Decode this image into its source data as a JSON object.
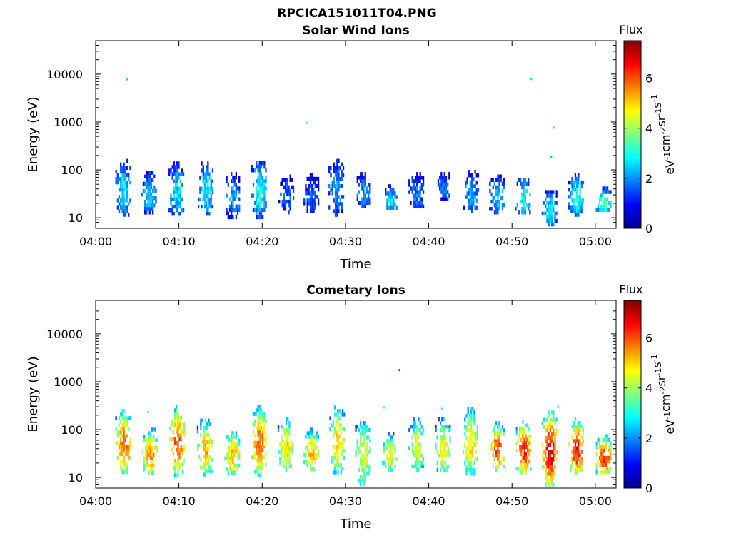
{
  "figure": {
    "title": "RPCICA151011T04.PNG"
  },
  "chart_data": [
    {
      "type": "heatmap",
      "title": "Solar Wind Ions",
      "xlabel": "Time",
      "ylabel": "Energy (eV)",
      "x_ticks": [
        "04:00",
        "04:10",
        "04:20",
        "04:30",
        "04:40",
        "04:50",
        "05:00"
      ],
      "x_tick_minutes": [
        0,
        10,
        20,
        30,
        40,
        50,
        60
      ],
      "xlim_minutes": [
        0,
        62.5
      ],
      "yscale": "log",
      "ylim": [
        6,
        50000
      ],
      "y_ticks": [
        "10",
        "100",
        "1000",
        "10000"
      ],
      "y_tick_values": [
        10,
        100,
        1000,
        10000
      ],
      "colorbar": {
        "title": "Flux",
        "label": "eV-1cm-2sr-1s-1",
        "range": [
          0,
          7.5
        ],
        "ticks": [
          "0",
          "2",
          "4",
          "6"
        ],
        "tick_values": [
          0,
          2,
          4,
          6
        ],
        "colormap": "jet"
      },
      "bursts": [
        {
          "t": 3.3,
          "e_min": 12,
          "e_max": 170,
          "flux": 2.6
        },
        {
          "t": 6.4,
          "e_min": 14,
          "e_max": 95,
          "flux": 2.4
        },
        {
          "t": 9.7,
          "e_min": 12,
          "e_max": 150,
          "flux": 2.6
        },
        {
          "t": 13.2,
          "e_min": 12,
          "e_max": 150,
          "flux": 2.6
        },
        {
          "t": 16.4,
          "e_min": 11,
          "e_max": 90,
          "flux": 2.1
        },
        {
          "t": 19.6,
          "e_min": 11,
          "e_max": 180,
          "flux": 2.8
        },
        {
          "t": 22.9,
          "e_min": 14,
          "e_max": 80,
          "flux": 1.6
        },
        {
          "t": 25.9,
          "e_min": 14,
          "e_max": 85,
          "flux": 1.6
        },
        {
          "t": 28.9,
          "e_min": 12,
          "e_max": 170,
          "flux": 2.1
        },
        {
          "t": 32.1,
          "e_min": 18,
          "e_max": 90,
          "flux": 2.1
        },
        {
          "t": 35.3,
          "e_min": 16,
          "e_max": 50,
          "flux": 2.6
        },
        {
          "t": 38.5,
          "e_min": 16,
          "e_max": 90,
          "flux": 1.8
        },
        {
          "t": 41.8,
          "e_min": 26,
          "e_max": 90,
          "flux": 1.7
        },
        {
          "t": 45.1,
          "e_min": 14,
          "e_max": 100,
          "flux": 2.1
        },
        {
          "t": 48.2,
          "e_min": 14,
          "e_max": 80,
          "flux": 2.4
        },
        {
          "t": 51.3,
          "e_min": 12,
          "e_max": 80,
          "flux": 2.8
        },
        {
          "t": 54.5,
          "e_min": 7,
          "e_max": 45,
          "flux": 2.6
        },
        {
          "t": 57.7,
          "e_min": 12,
          "e_max": 85,
          "flux": 3.0
        },
        {
          "t": 61.0,
          "e_min": 14,
          "e_max": 45,
          "flux": 3.4
        }
      ],
      "isolated_points": [
        {
          "t": 3.8,
          "e": 7800,
          "flux": 2.5
        },
        {
          "t": 25.4,
          "e": 960,
          "flux": 3.2
        },
        {
          "t": 52.3,
          "e": 7900,
          "flux": 2.6
        },
        {
          "t": 55.0,
          "e": 760,
          "flux": 2.6
        },
        {
          "t": 54.7,
          "e": 185,
          "flux": 2.4
        }
      ]
    },
    {
      "type": "heatmap",
      "title": "Cometary Ions",
      "xlabel": "Time",
      "ylabel": "Energy (eV)",
      "x_ticks": [
        "04:00",
        "04:10",
        "04:20",
        "04:30",
        "04:40",
        "04:50",
        "05:00"
      ],
      "x_tick_minutes": [
        0,
        10,
        20,
        30,
        40,
        50,
        60
      ],
      "xlim_minutes": [
        0,
        62.5
      ],
      "yscale": "log",
      "ylim": [
        6,
        50000
      ],
      "y_ticks": [
        "10",
        "100",
        "1000",
        "10000"
      ],
      "y_tick_values": [
        10,
        100,
        1000,
        10000
      ],
      "colorbar": {
        "title": "Flux",
        "label": "eV-1cm-2sr-1s-1",
        "range": [
          0,
          7.5
        ],
        "ticks": [
          "0",
          "2",
          "4",
          "6"
        ],
        "tick_values": [
          0,
          2,
          4,
          6
        ],
        "colormap": "jet"
      },
      "bursts": [
        {
          "t": 3.3,
          "e_min": 12,
          "e_max": 270,
          "flux": 5.9
        },
        {
          "t": 6.5,
          "e_min": 12,
          "e_max": 110,
          "flux": 5.6
        },
        {
          "t": 9.8,
          "e_min": 12,
          "e_max": 330,
          "flux": 6.0
        },
        {
          "t": 13.1,
          "e_min": 12,
          "e_max": 170,
          "flux": 5.3
        },
        {
          "t": 16.4,
          "e_min": 12,
          "e_max": 110,
          "flux": 5.3
        },
        {
          "t": 19.6,
          "e_min": 12,
          "e_max": 330,
          "flux": 5.9
        },
        {
          "t": 22.8,
          "e_min": 14,
          "e_max": 180,
          "flux": 5.0
        },
        {
          "t": 25.9,
          "e_min": 14,
          "e_max": 110,
          "flux": 5.2
        },
        {
          "t": 29.0,
          "e_min": 12,
          "e_max": 320,
          "flux": 5.0
        },
        {
          "t": 32.1,
          "e_min": 7,
          "e_max": 180,
          "flux": 4.4
        },
        {
          "t": 35.3,
          "e_min": 14,
          "e_max": 90,
          "flux": 4.6
        },
        {
          "t": 38.5,
          "e_min": 14,
          "e_max": 180,
          "flux": 4.4
        },
        {
          "t": 41.7,
          "e_min": 12,
          "e_max": 180,
          "flux": 4.7
        },
        {
          "t": 45.0,
          "e_min": 12,
          "e_max": 300,
          "flux": 5.0
        },
        {
          "t": 48.2,
          "e_min": 14,
          "e_max": 150,
          "flux": 6.0
        },
        {
          "t": 51.4,
          "e_min": 12,
          "e_max": 160,
          "flux": 6.4
        },
        {
          "t": 54.5,
          "e_min": 7,
          "e_max": 250,
          "flux": 6.8
        },
        {
          "t": 57.7,
          "e_min": 12,
          "e_max": 180,
          "flux": 6.5
        },
        {
          "t": 61.0,
          "e_min": 12,
          "e_max": 80,
          "flux": 6.5
        }
      ],
      "isolated_points": [
        {
          "t": 36.5,
          "e": 1750,
          "flux": 1.5
        },
        {
          "t": 6.3,
          "e": 230,
          "flux": 3.0
        },
        {
          "t": 34.6,
          "e": 290,
          "flux": 3.0
        },
        {
          "t": 41.6,
          "e": 270,
          "flux": 3.0
        },
        {
          "t": 55.5,
          "e": 300,
          "flux": 3.0
        }
      ]
    }
  ]
}
